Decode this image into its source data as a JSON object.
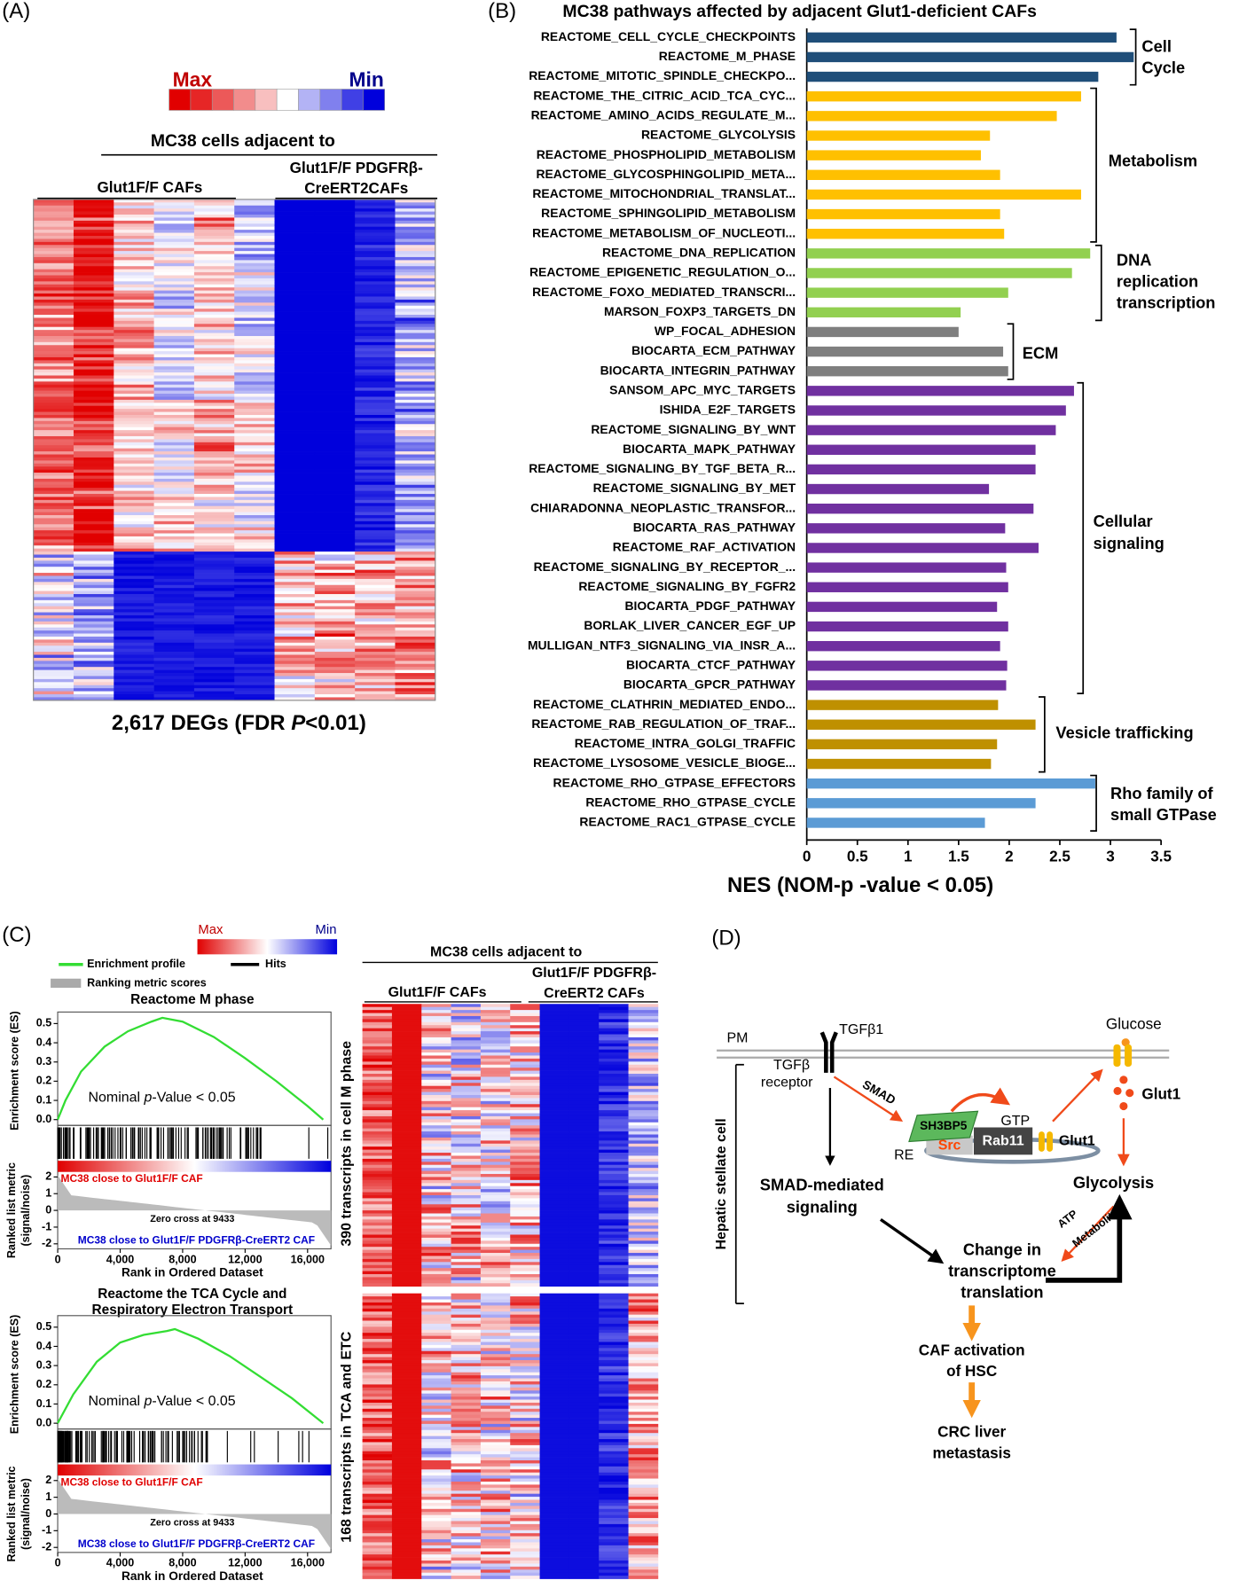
{
  "figure_labels": [
    "(A)",
    "(B)",
    "(C)",
    "(D)"
  ],
  "panel_a": {
    "legend_max": "Max",
    "legend_min": "Min",
    "header": "MC38 cells adjacent to",
    "group1": "Glut1F/F CAFs",
    "group2": [
      "Glut1F/F PDGFRβ-",
      "CreERT2CAFs"
    ],
    "caption": [
      "2,617 DEGs (FDR ",
      "P",
      "<0.01)"
    ]
  },
  "chart_data": [
    {
      "type": "bar",
      "orientation": "horizontal",
      "title": "MC38 pathways affected by adjacent Glut1-deficient CAFs",
      "x_label": "NES (NOM-p -value < 0.05)",
      "xlim": [
        0,
        3.5
      ],
      "xticks": [
        0,
        0.5,
        1,
        1.5,
        2,
        2.5,
        3,
        3.5
      ],
      "groups": [
        {
          "label": [
            "Cell",
            "Cycle"
          ],
          "color": "#1f4e79",
          "categories": [
            "REACTOME_CELL_CYCLE_CHECKPOINTS",
            "REACTOME_M_PHASE",
            "REACTOME_MITOTIC_SPINDLE_CHECKPO..."
          ],
          "values": [
            3.06,
            3.23,
            2.88
          ]
        },
        {
          "label": [
            "Metabolism"
          ],
          "color": "#ffc000",
          "categories": [
            "REACTOME_THE_CITRIC_ACID_TCA_CYC...",
            "REACTOME_AMINO_ACIDS_REGULATE_M...",
            "REACTOME_GLYCOLYSIS",
            "REACTOME_PHOSPHOLIPID_METABOLISM",
            "REACTOME_GLYCOSPHINGOLIPID_META...",
            "REACTOME_MITOCHONDRIAL_TRANSLAT...",
            "REACTOME_SPHINGOLIPID_METABOLISM",
            "REACTOME_METABOLISM_OF_NUCLEOTI..."
          ],
          "values": [
            2.71,
            2.47,
            1.81,
            1.72,
            1.91,
            2.71,
            1.91,
            1.95
          ]
        },
        {
          "label": [
            "DNA",
            "replication",
            "transcription"
          ],
          "color": "#92d050",
          "categories": [
            "REACTOME_DNA_REPLICATION",
            "REACTOME_EPIGENETIC_REGULATION_O...",
            "REACTOME_FOXO_MEDIATED_TRANSCRI...",
            "MARSON_FOXP3_TARGETS_DN"
          ],
          "values": [
            2.8,
            2.62,
            1.99,
            1.52
          ]
        },
        {
          "label": [
            "ECM"
          ],
          "color": "#7f7f7f",
          "categories": [
            "WP_FOCAL_ADHESION",
            "BIOCARTA_ECM_PATHWAY",
            "BIOCARTA_INTEGRIN_PATHWAY"
          ],
          "values": [
            1.5,
            1.94,
            1.99
          ]
        },
        {
          "label": [
            "Cellular",
            "signaling"
          ],
          "color": "#7030a0",
          "categories": [
            "SANSOM_APC_MYC_TARGETS",
            "ISHIDA_E2F_TARGETS",
            "REACTOME_SIGNALING_BY_WNT",
            "BIOCARTA_MAPK_PATHWAY",
            "REACTOME_SIGNALING_BY_TGF_BETA_R...",
            "REACTOME_SIGNALING_BY_MET",
            "CHIARADONNA_NEOPLASTIC_TRANSFOR...",
            "BIOCARTA_RAS_PATHWAY",
            "REACTOME_RAF_ACTIVATION",
            "REACTOME_SIGNALING_BY_RECEPTOR_...",
            "REACTOME_SIGNALING_BY_FGFR2",
            "BIOCARTA_PDGF_PATHWAY",
            "BORLAK_LIVER_CANCER_EGF_UP",
            "MULLIGAN_NTF3_SIGNALING_VIA_INSR_A...",
            "BIOCARTA_CTCF_PATHWAY",
            "BIOCARTA_GPCR_PATHWAY"
          ],
          "values": [
            2.64,
            2.56,
            2.46,
            2.26,
            2.26,
            1.8,
            2.24,
            1.96,
            2.29,
            1.97,
            1.99,
            1.88,
            1.99,
            1.91,
            1.98,
            1.97
          ]
        },
        {
          "label": [
            "Vesicle trafficking"
          ],
          "color": "#bf9000",
          "categories": [
            "REACTOME_CLATHRIN_MEDIATED_ENDO...",
            "REACTOME_RAB_REGULATION_OF_TRAF...",
            "REACTOME_INTRA_GOLGI_TRAFFIC",
            "REACTOME_LYSOSOME_VESICLE_BIOGE..."
          ],
          "values": [
            1.89,
            2.26,
            1.88,
            1.82
          ]
        },
        {
          "label": [
            "Rho family of",
            "small GTPase"
          ],
          "color": "#5b9bd5",
          "categories": [
            "REACTOME_RHO_GTPASE_EFFECTORS",
            "REACTOME_RHO_GTPASE_CYCLE",
            "REACTOME_RAC1_GTPASE_CYCLE"
          ],
          "values": [
            2.85,
            2.26,
            1.76
          ]
        }
      ]
    },
    {
      "type": "line",
      "title": [
        "Reactome M phase"
      ],
      "y_label": "Enrichment score (ES)",
      "annotation": [
        "Nominal ",
        "p",
        "-Value < 0.05"
      ],
      "color": "#33dd33",
      "x": [
        0,
        500,
        1500,
        3000,
        4500,
        6000,
        6700,
        8000,
        10000,
        12000,
        14000,
        16000,
        17000
      ],
      "values": [
        0,
        0.1,
        0.25,
        0.38,
        0.46,
        0.51,
        0.53,
        0.51,
        0.43,
        0.32,
        0.2,
        0.07,
        0
      ],
      "xlim": [
        0,
        17500
      ],
      "xticks": [
        0,
        {
          "value": 4000,
          "label": "4,000"
        },
        {
          "value": 8000,
          "label": "8,000"
        },
        {
          "value": 12000,
          "label": "12,000"
        },
        {
          "value": 16000,
          "label": "16,000"
        }
      ],
      "ylim": [
        -0.03,
        0.56
      ],
      "yticks": [
        {
          "value": 0,
          "label": "0.0"
        },
        0.1,
        0.2,
        0.3,
        0.4,
        0.5
      ],
      "x_label": "Rank in Ordered Dataset",
      "rank_metric": {
        "y_label": [
          "Ranked list metric",
          "(signal/noise)"
        ],
        "ylim": [
          -2.3,
          2.3
        ],
        "yticks": [
          2,
          1,
          0,
          -1,
          -2
        ],
        "top_label": "MC38 close to Glut1F/F CAF",
        "zero_cross": "Zero cross at 9433",
        "bottom_label": "MC38 close to Glut1F/F PDGFRβ-CreERT2 CAF"
      }
    },
    {
      "type": "line",
      "title": [
        "Reactome the TCA Cycle and",
        "Respiratory Electron Transport"
      ],
      "y_label": "Enrichment score (ES)",
      "annotation": [
        "Nominal ",
        "p",
        "-Value < 0.05"
      ],
      "color": "#33dd33",
      "x": [
        0,
        1000,
        2500,
        4000,
        5500,
        7000,
        7500,
        9000,
        11000,
        13000,
        15000,
        17000
      ],
      "values": [
        0,
        0.15,
        0.32,
        0.42,
        0.46,
        0.48,
        0.49,
        0.44,
        0.35,
        0.24,
        0.13,
        0
      ],
      "xlim": [
        0,
        17500
      ],
      "xticks": [
        0,
        {
          "value": 4000,
          "label": "4,000"
        },
        {
          "value": 8000,
          "label": "8,000"
        },
        {
          "value": 12000,
          "label": "12,000"
        },
        {
          "value": 16000,
          "label": "16,000"
        }
      ],
      "ylim": [
        -0.03,
        0.56
      ],
      "yticks": [
        {
          "value": 0,
          "label": "0.0"
        },
        0.1,
        0.2,
        0.3,
        0.4,
        0.5
      ],
      "x_label": "Rank in Ordered Dataset",
      "rank_metric": {
        "y_label": [
          "Ranked list metric",
          "(signal/noise)"
        ],
        "ylim": [
          -2.3,
          2.3
        ],
        "yticks": [
          2,
          1,
          0,
          -1,
          -2
        ],
        "top_label": "MC38 close to Glut1F/F CAF",
        "zero_cross": "Zero cross at 9433",
        "bottom_label": "MC38 close to Glut1F/F PDGFRβ-CreERT2 CAF"
      }
    }
  ],
  "panel_c": {
    "legend_max": "Max",
    "legend_min": "Min",
    "legend_entries": [
      "Enrichment profile",
      "Hits",
      "Ranking metric scores"
    ],
    "header": "MC38 cells adjacent to",
    "group1": "Glut1F/F CAFs",
    "group2": [
      "Glut1F/F PDGFRβ-",
      "CreERT2 CAFs"
    ],
    "heatmap_labels": [
      "390 transcripts in cell M phase",
      "168 transcripts in TCA and ETC"
    ]
  },
  "panel_d": {
    "pm": "PM",
    "ligand": "TGFβ1",
    "receptor": [
      "TGFβ",
      "receptor"
    ],
    "smad": "SMAD",
    "sh3bp5": "SH3BP5",
    "gtp": "GTP",
    "src": "Src",
    "rab11": "Rab11",
    "glut1_re": "Glut1",
    "re": "RE",
    "glucose": "Glucose",
    "glut1_pm": "Glut1",
    "cell": "Hepatic stellate cell",
    "smad_signaling": [
      "SMAD-mediated",
      "signaling"
    ],
    "glycolysis": "Glycolysis",
    "atp": "ATP",
    "metabolites": "Metabolites",
    "change": [
      "Change in",
      "transcriptome",
      "translation"
    ],
    "caf": [
      "CAF activation",
      "of HSC"
    ],
    "crc": [
      "CRC liver",
      "metastasis"
    ]
  }
}
